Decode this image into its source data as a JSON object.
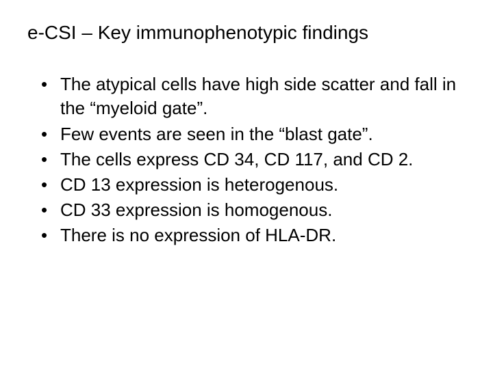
{
  "slide": {
    "title": "e-CSI – Key immunophenotypic findings",
    "bullets": [
      "The atypical cells have high side scatter and fall in the “myeloid gate”.",
      "Few events are seen in the “blast gate”.",
      "The cells express CD 34, CD 117, and CD 2.",
      "CD 13 expression is heterogenous.",
      "CD 33 expression is homogenous.",
      "There is no expression of HLA-DR."
    ],
    "styling": {
      "background_color": "#ffffff",
      "text_color": "#000000",
      "title_fontsize": 28,
      "bullet_fontsize": 26,
      "font_family": "Arial"
    }
  }
}
